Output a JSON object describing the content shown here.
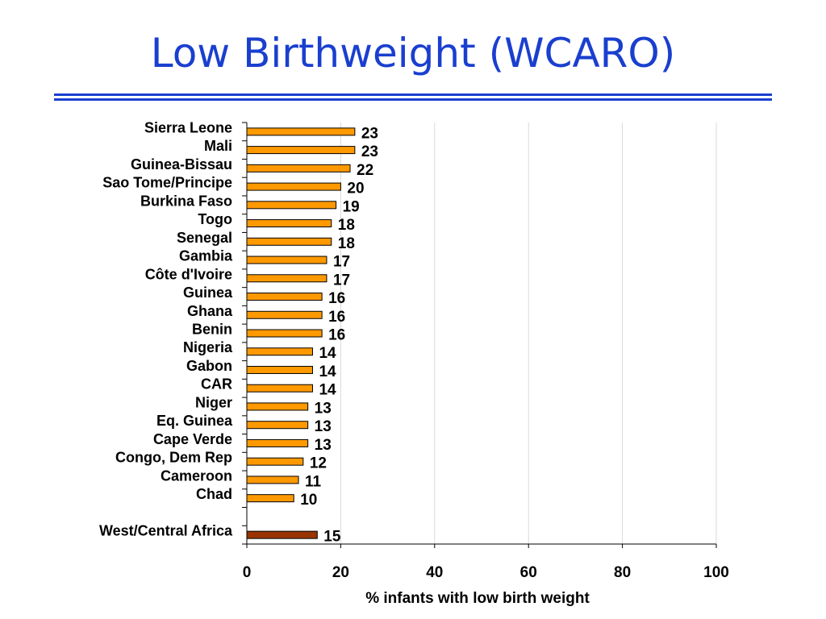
{
  "slide": {
    "title": "Low Birthweight (WCARO)"
  },
  "colors": {
    "title": "#1a3fcf",
    "country_bar": "#ff9900",
    "aggregate_bar": "#993300",
    "bar_outline": "#000000",
    "grid": "#d9d9d9"
  },
  "chart_data": {
    "type": "bar",
    "orientation": "horizontal",
    "title": "",
    "xlabel": "% infants with low birth weight",
    "ylabel": "",
    "xlim": [
      0,
      100
    ],
    "xticks": [
      0,
      20,
      40,
      60,
      80,
      100
    ],
    "grid": "vertical gridlines on",
    "legend": "none",
    "categories": [
      "Sierra Leone",
      "Mali",
      "Guinea-Bissau",
      "Sao Tome/Principe",
      "Burkina Faso",
      "Togo",
      "Senegal",
      "Gambia",
      "Côte d'Ivoire",
      "Guinea",
      "Ghana",
      "Benin",
      "Nigeria",
      "Gabon",
      "CAR",
      "Niger",
      "Eq. Guinea",
      "Cape Verde",
      "Congo, Dem Rep",
      "Cameroon",
      "Chad",
      "",
      "West/Central Africa"
    ],
    "values": [
      23,
      23,
      22,
      20,
      19,
      18,
      18,
      17,
      17,
      16,
      16,
      16,
      14,
      14,
      14,
      13,
      13,
      13,
      12,
      11,
      10,
      null,
      15
    ],
    "highlight": [
      "West/Central Africa"
    ]
  }
}
